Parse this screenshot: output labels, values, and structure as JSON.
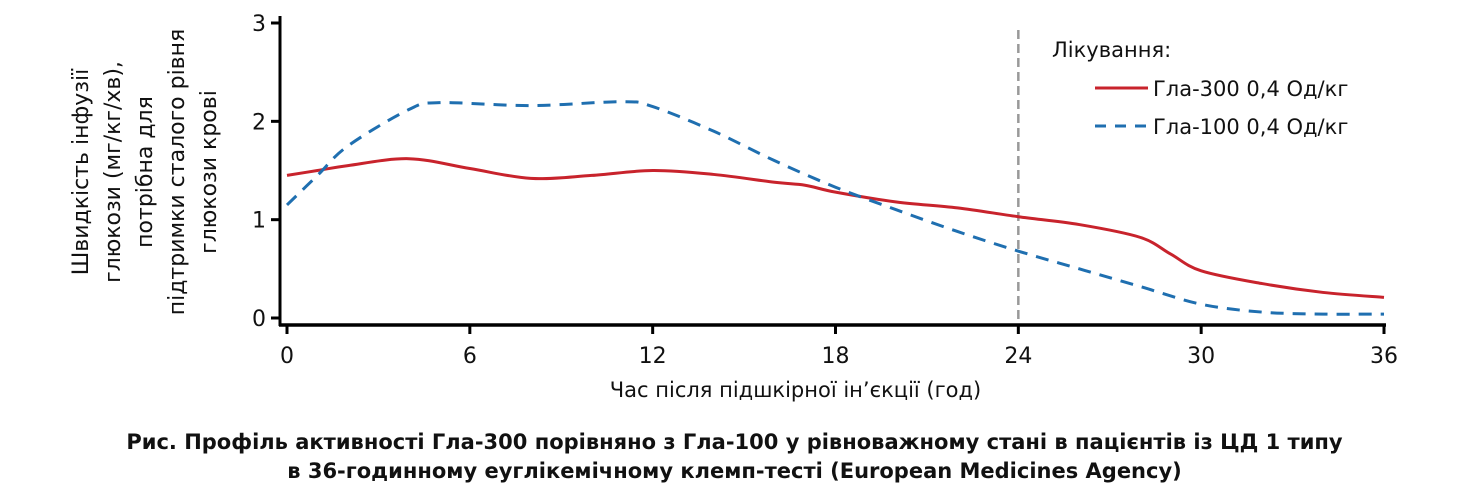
{
  "chart_data": {
    "type": "line",
    "xlabel": "Час після підшкірної ін’єкції (год)",
    "ylabel_lines": [
      "Швидкість інфузії",
      "глюкози (мг/кг/хв),",
      "потрібна для",
      "підтримки сталого рівня",
      "глюкози крові"
    ],
    "xlim": [
      0,
      36
    ],
    "ylim": [
      0,
      3
    ],
    "xticks": [
      0,
      6,
      12,
      18,
      24,
      30,
      36
    ],
    "yticks": [
      0,
      1,
      2,
      3
    ],
    "grid": false,
    "reference_line_x": 24,
    "legend": {
      "title": "Лікування:",
      "placement": "top-right"
    },
    "series": [
      {
        "name": "Гла-300 0,4 Од/кг",
        "color": "#c8232c",
        "style": "solid",
        "x": [
          0,
          1,
          2,
          4,
          6,
          8,
          10,
          12,
          14,
          16,
          17,
          18,
          20,
          22,
          24,
          26,
          28,
          29,
          30,
          32,
          34,
          36
        ],
        "y": [
          1.45,
          1.5,
          1.55,
          1.62,
          1.52,
          1.42,
          1.45,
          1.5,
          1.46,
          1.38,
          1.35,
          1.28,
          1.18,
          1.12,
          1.03,
          0.95,
          0.82,
          0.65,
          0.48,
          0.35,
          0.26,
          0.21
        ]
      },
      {
        "name": "Гла-100 0,4 Од/кг",
        "color": "#1f6fb0",
        "style": "dashed",
        "x": [
          0,
          1,
          2,
          4,
          5,
          8,
          11,
          12,
          14,
          16,
          18,
          20,
          22,
          24,
          26,
          28,
          30,
          32,
          34,
          36
        ],
        "y": [
          1.15,
          1.45,
          1.75,
          2.12,
          2.19,
          2.16,
          2.2,
          2.15,
          1.9,
          1.6,
          1.33,
          1.1,
          0.88,
          0.68,
          0.5,
          0.32,
          0.14,
          0.06,
          0.04,
          0.04
        ]
      }
    ]
  },
  "caption": {
    "line1": "Рис. Профіль активності Гла-300 порівняно з Гла-100 у рівноважному стані в пацієнтів із ЦД 1 типу",
    "line2": "в 36-годинному еуглікемічному клемп-тесті (European Medicines Agency)"
  }
}
